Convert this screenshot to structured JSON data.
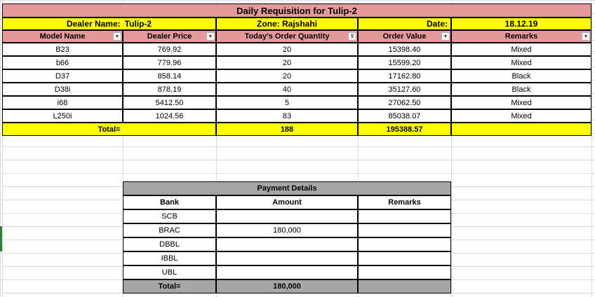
{
  "title": "Daily Requisition for Tulip-2",
  "info": {
    "dealer_label": "Dealer Name:",
    "dealer_value": "Tulip-2",
    "zone": "Zone: Rajshahi",
    "date_label": "Date:",
    "date_value": "18.12.19"
  },
  "columns": [
    "Model Name",
    "Dealer Price",
    "Today's Order Quantity",
    "Order Value",
    "Remarks"
  ],
  "rows": [
    {
      "model": "B23",
      "price": "769.92",
      "qty": "20",
      "value": "15398.40",
      "remarks": "Mixed"
    },
    {
      "model": "b66",
      "price": "779.96",
      "qty": "20",
      "value": "15599.20",
      "remarks": "Mixed"
    },
    {
      "model": "D37",
      "price": "858.14",
      "qty": "20",
      "value": "17162.80",
      "remarks": "Black"
    },
    {
      "model": "D38i",
      "price": "878.19",
      "qty": "40",
      "value": "35127.60",
      "remarks": "Black"
    },
    {
      "model": "i68",
      "price": "5412.50",
      "qty": "5",
      "value": "27062.50",
      "remarks": "Mixed"
    },
    {
      "model": "L250i",
      "price": "1024.56",
      "qty": "83",
      "value": "85038.07",
      "remarks": "Mixed"
    }
  ],
  "total": {
    "label": "Total=",
    "qty": "188",
    "value": "195388.57"
  },
  "payment": {
    "title": "Payment Details",
    "headers": [
      "Bank",
      "Amount",
      "Remarks"
    ],
    "rows": [
      {
        "bank": "SCB",
        "amount": "",
        "remarks": ""
      },
      {
        "bank": "BRAC",
        "amount": "180,000",
        "remarks": ""
      },
      {
        "bank": "DBBL",
        "amount": "",
        "remarks": ""
      },
      {
        "bank": "IBBL",
        "amount": "",
        "remarks": ""
      },
      {
        "bank": "UBL",
        "amount": "",
        "remarks": ""
      }
    ],
    "total_label": "Total=",
    "total_amount": "180,000"
  },
  "colors": {
    "header_pink": "#e4999b",
    "highlight_yellow": "#ffff00",
    "payment_gray": "#a6a6a6"
  },
  "filter_icon_names": [
    "dropdown-arrow-icon",
    "filter-active-icon"
  ]
}
